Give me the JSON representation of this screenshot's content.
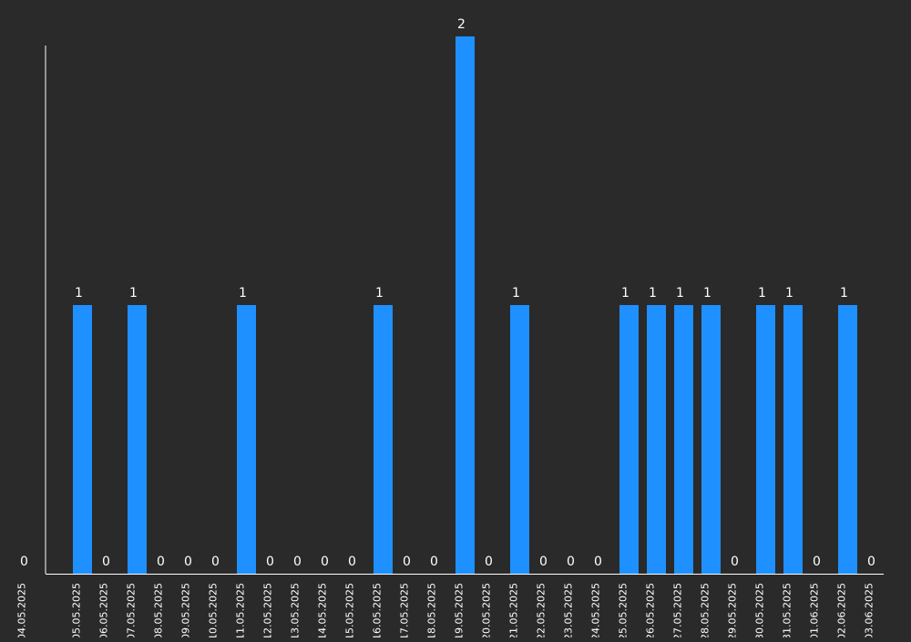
{
  "colors": {
    "background": "#2a2a2a",
    "bar": "#1e90ff",
    "axis": "#ffffff",
    "text": "#ffffff"
  },
  "chart_data": {
    "type": "bar",
    "categories": [
      "04.05.2025",
      "05.05.2025",
      "06.05.2025",
      "07.05.2025",
      "08.05.2025",
      "09.05.2025",
      "10.05.2025",
      "11.05.2025",
      "12.05.2025",
      "13.05.2025",
      "14.05.2025",
      "15.05.2025",
      "16.05.2025",
      "17.05.2025",
      "18.05.2025",
      "19.05.2025",
      "20.05.2025",
      "21.05.2025",
      "22.05.2025",
      "23.05.2025",
      "24.05.2025",
      "25.05.2025",
      "26.05.2025",
      "27.05.2025",
      "28.05.2025",
      "29.05.2025",
      "30.05.2025",
      "31.05.2025",
      "01.06.2025",
      "02.06.2025",
      "03.06.2025"
    ],
    "values": [
      0,
      1,
      0,
      1,
      0,
      0,
      0,
      1,
      0,
      0,
      0,
      0,
      1,
      0,
      0,
      2,
      0,
      1,
      0,
      0,
      0,
      1,
      1,
      1,
      1,
      0,
      1,
      1,
      0,
      1,
      0
    ],
    "ylim": [
      0,
      2
    ],
    "grid": false,
    "legend": "none",
    "data_labels": true
  }
}
